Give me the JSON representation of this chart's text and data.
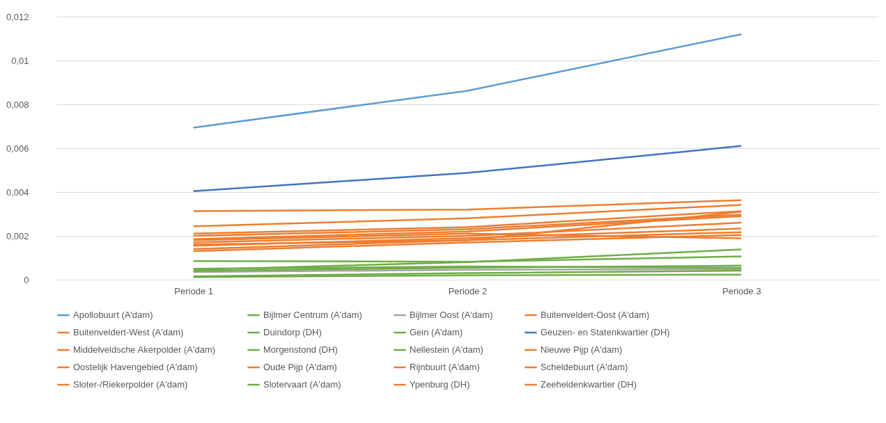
{
  "chart_data": {
    "type": "line",
    "categories": [
      "Periode 1",
      "Periode 2",
      "Periode 3"
    ],
    "ylim": [
      0,
      0.012
    ],
    "yticks": [
      {
        "value": 0,
        "label": "0"
      },
      {
        "value": 0.002,
        "label": "0,002"
      },
      {
        "value": 0.004,
        "label": "0,004"
      },
      {
        "value": 0.006,
        "label": "0,006"
      },
      {
        "value": 0.008,
        "label": "0,008"
      },
      {
        "value": 0.01,
        "label": "0,01"
      },
      {
        "value": 0.012,
        "label": "0,012"
      }
    ],
    "grid": "y",
    "legend": "bottom",
    "marker": "none",
    "series": [
      {
        "name": "Apollobuurt (A'dam)",
        "color": "#5b9bd5",
        "values": [
          0.00694,
          0.00862,
          0.0112
        ]
      },
      {
        "name": "Bijlmer Centrum (A'dam)",
        "color": "#70ad47",
        "values": [
          0.00045,
          0.0008,
          0.00138
        ]
      },
      {
        "name": "Bijlmer Oost (A'dam)",
        "color": "#a5a5a5",
        "values": [
          0.00035,
          0.00045,
          0.00048
        ]
      },
      {
        "name": "Buitenveldert-Oost (A'dam)",
        "color": "#ed7d31",
        "values": [
          0.00313,
          0.0032,
          0.00363
        ]
      },
      {
        "name": "Buitenveldert-West (A'dam)",
        "color": "#ed7d31",
        "values": [
          0.00244,
          0.0028,
          0.00341
        ]
      },
      {
        "name": "Duindorp (DH)",
        "color": "#70ad47",
        "values": [
          0.00085,
          0.00082,
          0.00106
        ]
      },
      {
        "name": "Gein (A'dam)",
        "color": "#70ad47",
        "values": [
          0.00015,
          0.0003,
          0.00041
        ]
      },
      {
        "name": "Geuzen- en Statenkwartier (DH)",
        "color": "#4472c4",
        "values": [
          0.00404,
          0.00487,
          0.0061
        ]
      },
      {
        "name": "Middelveldsche Akerpolder (A'dam)",
        "color": "#ed7d31",
        "values": [
          0.0021,
          0.0024,
          0.00313
        ]
      },
      {
        "name": "Morgenstond (DH)",
        "color": "#70ad47",
        "values": [
          0.0004,
          0.00055,
          0.00064
        ]
      },
      {
        "name": "Nellestein (A'dam)",
        "color": "#70ad47",
        "values": [
          0.0005,
          0.0006,
          0.00054
        ]
      },
      {
        "name": "Nieuwe Pijp (A'dam)",
        "color": "#ed7d31",
        "values": [
          0.002,
          0.0023,
          0.00297
        ]
      },
      {
        "name": "Oostelijk Havengebied (A'dam)",
        "color": "#ed7d31",
        "values": [
          0.00185,
          0.0022,
          0.0029
        ]
      },
      {
        "name": "Oude Pijp (A'dam)",
        "color": "#ed7d31",
        "values": [
          0.0017,
          0.002,
          0.0026
        ]
      },
      {
        "name": "Rijnbuurt (A'dam)",
        "color": "#ed7d31",
        "values": [
          0.00155,
          0.0019,
          0.00233
        ]
      },
      {
        "name": "Scheldebuurt (A'dam)",
        "color": "#ed7d31",
        "values": [
          0.0014,
          0.0018,
          0.00217
        ]
      },
      {
        "name": "Sloter-/Riekerpolder (A'dam)",
        "color": "#ed7d31",
        "values": [
          0.0013,
          0.0017,
          0.00204
        ]
      },
      {
        "name": "Slotervaart (A'dam)",
        "color": "#70ad47",
        "values": [
          0.00012,
          0.0002,
          0.00023
        ]
      },
      {
        "name": "Ypenburg (DH)",
        "color": "#ed7d31",
        "values": [
          0.0018,
          0.0021,
          0.00189
        ]
      },
      {
        "name": "Zeeheldenkwartier (DH)",
        "color": "#ed7d31",
        "values": [
          0.0016,
          0.0018,
          0.0031
        ]
      }
    ]
  }
}
